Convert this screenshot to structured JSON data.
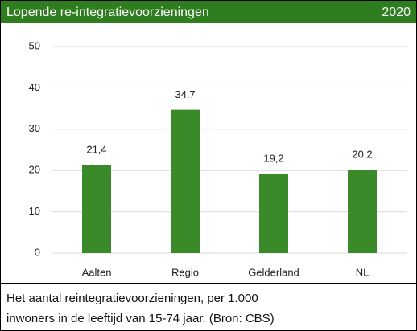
{
  "chart_data": {
    "type": "bar",
    "title": "Lopende re-integratievoorzieningen",
    "title_right": "2020",
    "categories": [
      "Aalten",
      "Regio",
      "Gelderland",
      "NL"
    ],
    "values": [
      21.4,
      34.7,
      19.2,
      20.2
    ],
    "value_labels": [
      "21,4",
      "34,7",
      "19,2",
      "20,2"
    ],
    "color": "#3a8a2a",
    "ylim": [
      0,
      50
    ],
    "yticks": [
      0,
      10,
      20,
      30,
      40,
      50
    ],
    "grid": true,
    "note": [
      "Het aantal reintegratievoorzieningen, per 1.000",
      "inwoners in de leeftijd van 15-74 jaar. (Bron: CBS)"
    ]
  }
}
